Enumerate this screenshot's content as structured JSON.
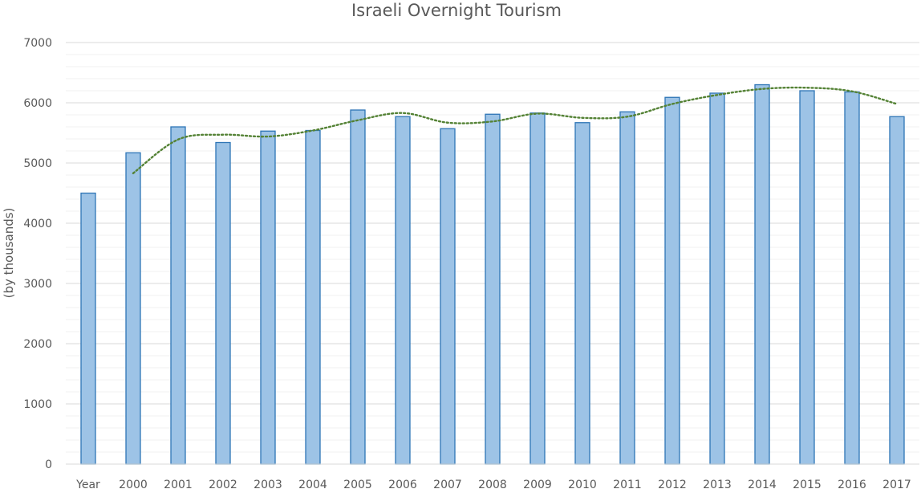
{
  "chart_data": {
    "type": "bar",
    "title": "Israeli Overnight Tourism",
    "xlabel": "",
    "ylabel": "(by thousands)",
    "ylim": [
      0,
      7000
    ],
    "yticks": [
      0,
      1000,
      2000,
      3000,
      4000,
      5000,
      6000,
      7000
    ],
    "grid": true,
    "legend": "none",
    "categories": [
      "Year",
      "2000",
      "2001",
      "2002",
      "2003",
      "2004",
      "2005",
      "2006",
      "2007",
      "2008",
      "2009",
      "2010",
      "2011",
      "2012",
      "2013",
      "2014",
      "2015",
      "2016",
      "2017"
    ],
    "series": [
      {
        "type": "bar",
        "values": [
          4500,
          5170,
          5600,
          5340,
          5530,
          5540,
          5880,
          5770,
          5570,
          5810,
          5830,
          5670,
          5850,
          6090,
          6160,
          6300,
          6200,
          6180,
          5770
        ]
      },
      {
        "type": "line",
        "style": "dotted",
        "values": [
          null,
          4830,
          5390,
          5470,
          5440,
          5540,
          5710,
          5830,
          5670,
          5690,
          5820,
          5750,
          5770,
          5980,
          6130,
          6230,
          6250,
          6190,
          5980
        ]
      }
    ],
    "colors": {
      "bar_fill": "#9dc3e6",
      "bar_stroke": "#2e75b6",
      "trend": "#548235",
      "grid": "#d9d9d9",
      "text": "#595959"
    }
  }
}
